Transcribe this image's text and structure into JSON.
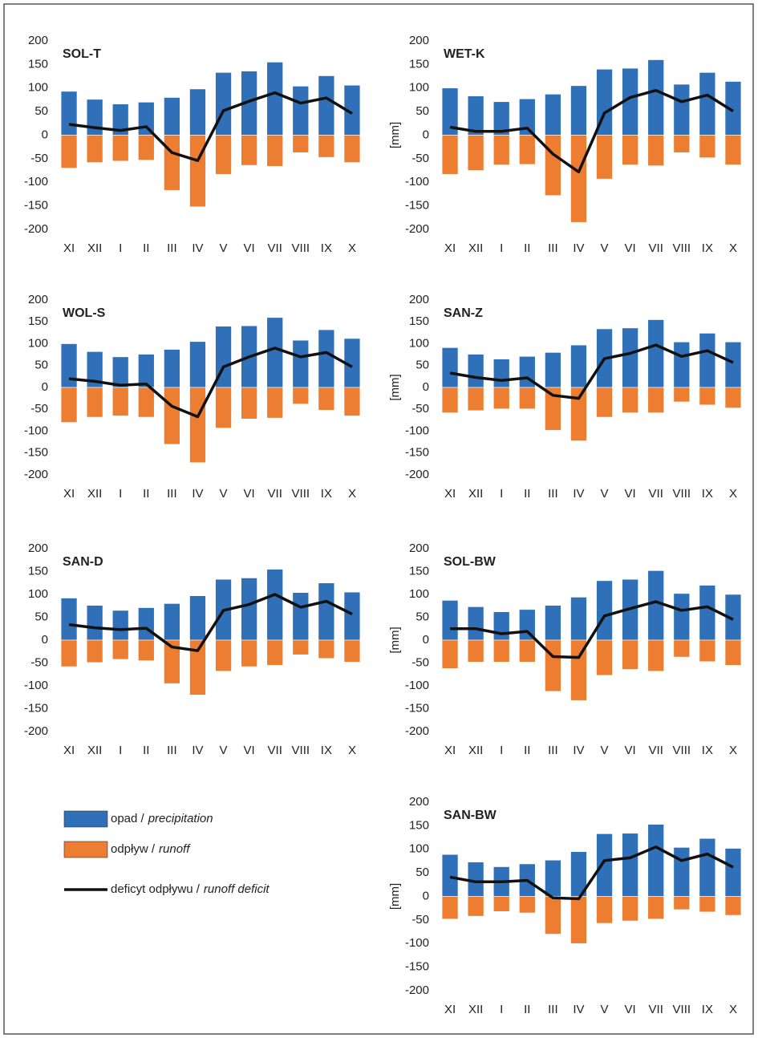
{
  "chart_data": [
    {
      "type": "bar",
      "title": "SOL-T",
      "categories": [
        "XI",
        "XII",
        "I",
        "II",
        "III",
        "IV",
        "V",
        "VI",
        "VII",
        "VIII",
        "IX",
        "X"
      ],
      "series": [
        {
          "color": "#2f70b8",
          "values": [
            93,
            76,
            66,
            70,
            80,
            98,
            133,
            136,
            155,
            104,
            126,
            106
          ]
        },
        {
          "color": "#ed7d31",
          "values": [
            -70,
            -58,
            -55,
            -53,
            -117,
            -152,
            -83,
            -64,
            -66,
            -37,
            -47,
            -58
          ]
        },
        {
          "type": "line",
          "color": "#111111",
          "values": [
            23,
            16,
            10,
            18,
            -37,
            -54,
            52,
            72,
            90,
            68,
            79,
            46
          ]
        }
      ],
      "ylim": [
        -200,
        200
      ],
      "yticks": [
        -200,
        -150,
        -100,
        -50,
        0,
        50,
        100,
        150,
        200
      ],
      "grid": false
    },
    {
      "type": "bar",
      "title": "WET-K",
      "ylabel": "[mm]",
      "categories": [
        "XI",
        "XII",
        "I",
        "II",
        "III",
        "IV",
        "V",
        "VI",
        "VII",
        "VIII",
        "IX",
        "X"
      ],
      "series": [
        {
          "color": "#2f70b8",
          "values": [
            100,
            83,
            71,
            77,
            87,
            105,
            140,
            142,
            160,
            108,
            133,
            114
          ]
        },
        {
          "color": "#ed7d31",
          "values": [
            -83,
            -75,
            -63,
            -62,
            -128,
            -185,
            -93,
            -63,
            -65,
            -37,
            -48,
            -63
          ]
        },
        {
          "type": "line",
          "color": "#111111",
          "values": [
            17,
            8,
            8,
            15,
            -40,
            -78,
            47,
            80,
            95,
            71,
            85,
            51
          ]
        }
      ],
      "ylim": [
        -200,
        200
      ],
      "yticks": [
        -200,
        -150,
        -100,
        -50,
        0,
        50,
        100,
        150,
        200
      ],
      "grid": false
    },
    {
      "type": "bar",
      "title": "WOL-S",
      "categories": [
        "XI",
        "XII",
        "I",
        "II",
        "III",
        "IV",
        "V",
        "VI",
        "VII",
        "VIII",
        "IX",
        "X"
      ],
      "series": [
        {
          "color": "#2f70b8",
          "values": [
            100,
            82,
            70,
            76,
            87,
            105,
            140,
            141,
            160,
            108,
            132,
            112
          ]
        },
        {
          "color": "#ed7d31",
          "values": [
            -80,
            -68,
            -65,
            -68,
            -130,
            -172,
            -93,
            -72,
            -70,
            -38,
            -52,
            -65
          ]
        },
        {
          "type": "line",
          "color": "#111111",
          "values": [
            20,
            14,
            5,
            8,
            -43,
            -67,
            47,
            70,
            90,
            70,
            80,
            47
          ]
        }
      ],
      "ylim": [
        -200,
        200
      ],
      "yticks": [
        -200,
        -150,
        -100,
        -50,
        0,
        50,
        100,
        150,
        200
      ],
      "grid": false
    },
    {
      "type": "bar",
      "title": "SAN-Z",
      "ylabel": "[mm]",
      "categories": [
        "XI",
        "XII",
        "I",
        "II",
        "III",
        "IV",
        "V",
        "VI",
        "VII",
        "VIII",
        "IX",
        "X"
      ],
      "series": [
        {
          "color": "#2f70b8",
          "values": [
            91,
            76,
            65,
            71,
            80,
            97,
            134,
            136,
            155,
            104,
            124,
            104
          ]
        },
        {
          "color": "#ed7d31",
          "values": [
            -58,
            -53,
            -49,
            -49,
            -98,
            -122,
            -68,
            -58,
            -58,
            -33,
            -40,
            -47
          ]
        },
        {
          "type": "line",
          "color": "#111111",
          "values": [
            33,
            23,
            16,
            22,
            -18,
            -25,
            66,
            78,
            97,
            71,
            84,
            57
          ]
        }
      ],
      "ylim": [
        -200,
        200
      ],
      "yticks": [
        -200,
        -150,
        -100,
        -50,
        0,
        50,
        100,
        150,
        200
      ],
      "grid": false
    },
    {
      "type": "bar",
      "title": "SAN-D",
      "categories": [
        "XI",
        "XII",
        "I",
        "II",
        "III",
        "IV",
        "V",
        "VI",
        "VII",
        "VIII",
        "IX",
        "X"
      ],
      "series": [
        {
          "color": "#2f70b8",
          "values": [
            92,
            76,
            65,
            71,
            80,
            97,
            133,
            136,
            155,
            104,
            125,
            105
          ]
        },
        {
          "color": "#ed7d31",
          "values": [
            -58,
            -49,
            -42,
            -45,
            -95,
            -120,
            -68,
            -58,
            -55,
            -32,
            -40,
            -48
          ]
        },
        {
          "type": "line",
          "color": "#111111",
          "values": [
            34,
            27,
            23,
            26,
            -15,
            -23,
            65,
            78,
            100,
            72,
            85,
            57
          ]
        }
      ],
      "ylim": [
        -200,
        200
      ],
      "yticks": [
        -200,
        -150,
        -100,
        -50,
        0,
        50,
        100,
        150,
        200
      ],
      "grid": false
    },
    {
      "type": "bar",
      "title": "SOL-BW",
      "ylabel": "[mm]",
      "categories": [
        "XI",
        "XII",
        "I",
        "II",
        "III",
        "IV",
        "V",
        "VI",
        "VII",
        "VIII",
        "IX",
        "X"
      ],
      "series": [
        {
          "color": "#2f70b8",
          "values": [
            87,
            73,
            62,
            67,
            76,
            94,
            130,
            133,
            152,
            102,
            120,
            100
          ]
        },
        {
          "color": "#ed7d31",
          "values": [
            -62,
            -48,
            -48,
            -48,
            -112,
            -132,
            -77,
            -64,
            -68,
            -37,
            -47,
            -55
          ]
        },
        {
          "type": "line",
          "color": "#111111",
          "values": [
            25,
            25,
            14,
            19,
            -36,
            -38,
            53,
            69,
            84,
            65,
            73,
            45
          ]
        }
      ],
      "ylim": [
        -200,
        200
      ],
      "yticks": [
        -200,
        -150,
        -100,
        -50,
        0,
        50,
        100,
        150,
        200
      ],
      "grid": false
    },
    {
      "type": "bar",
      "title": "SAN-BW",
      "ylabel": "[mm]",
      "categories": [
        "XI",
        "XII",
        "I",
        "II",
        "III",
        "IV",
        "V",
        "VI",
        "VII",
        "VIII",
        "IX",
        "X"
      ],
      "series": [
        {
          "color": "#2f70b8",
          "values": [
            89,
            73,
            63,
            69,
            77,
            95,
            133,
            134,
            153,
            104,
            123,
            102
          ]
        },
        {
          "color": "#ed7d31",
          "values": [
            -48,
            -42,
            -32,
            -35,
            -80,
            -100,
            -57,
            -52,
            -48,
            -28,
            -33,
            -40
          ]
        },
        {
          "type": "line",
          "color": "#111111",
          "values": [
            41,
            31,
            31,
            34,
            -3,
            -5,
            76,
            82,
            105,
            76,
            90,
            62
          ]
        }
      ],
      "ylim": [
        -200,
        200
      ],
      "yticks": [
        -200,
        -150,
        -100,
        -50,
        0,
        50,
        100,
        150,
        200
      ],
      "grid": false
    }
  ],
  "legend": [
    {
      "text": "opad /",
      "text_en": "precipitation",
      "color": "#2f70b8"
    },
    {
      "text": "odpływ /",
      "text_en": "runoff",
      "color": "#ed7d31"
    },
    {
      "text": "deficyt odpływu /",
      "text_en": "runoff deficit",
      "color": "#111111"
    }
  ]
}
